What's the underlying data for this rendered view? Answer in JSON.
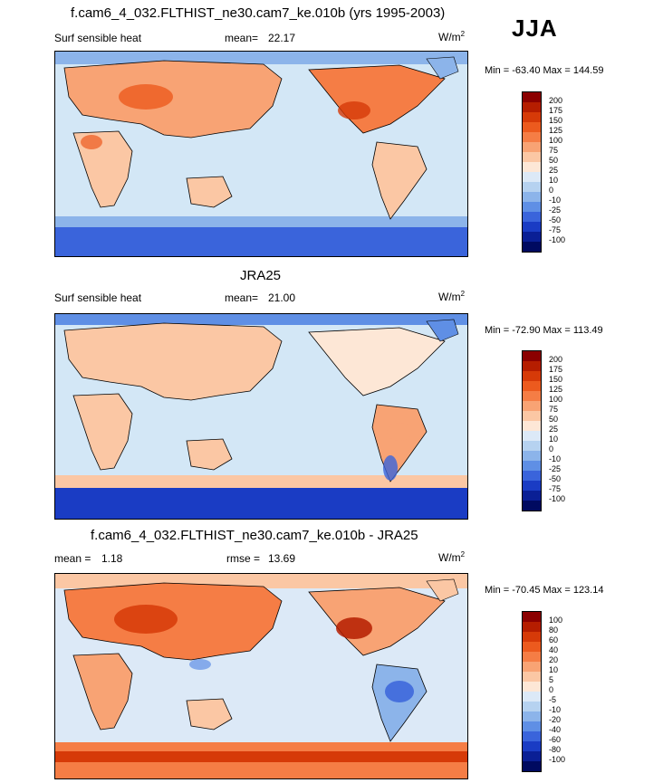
{
  "season": "JJA",
  "panels": [
    {
      "title": "f.cam6_4_032.FLTHIST_ne30.cam7_ke.010b (yrs 1995-2003)",
      "variable": "Surf sensible heat",
      "stat_label": "mean=",
      "stat_value": "22.17",
      "units": "W/m",
      "units_sup": "2",
      "minmax": "Min = -63.40 Max = 144.59",
      "colorbar_labels": [
        "200",
        "175",
        "150",
        "125",
        "100",
        "75",
        "50",
        "25",
        "10",
        "0",
        "-10",
        "-25",
        "-50",
        "-75",
        "-100"
      ]
    },
    {
      "title": "JRA25",
      "variable": "Surf sensible heat",
      "stat_label": "mean=",
      "stat_value": "21.00",
      "units": "W/m",
      "units_sup": "2",
      "minmax": "Min = -72.90 Max = 113.49",
      "colorbar_labels": [
        "200",
        "175",
        "150",
        "125",
        "100",
        "75",
        "50",
        "25",
        "10",
        "0",
        "-10",
        "-25",
        "-50",
        "-75",
        "-100"
      ]
    },
    {
      "title": "f.cam6_4_032.FLTHIST_ne30.cam7_ke.010b - JRA25",
      "variable": "mean =",
      "variable_value": "1.18",
      "stat_label": "rmse =",
      "stat_value": "13.69",
      "units": "W/m",
      "units_sup": "2",
      "minmax": "Min = -70.45 Max = 123.14",
      "colorbar_labels": [
        "100",
        "80",
        "60",
        "40",
        "20",
        "10",
        "5",
        "0",
        "-5",
        "-10",
        "-20",
        "-40",
        "-60",
        "-80",
        "-100"
      ]
    }
  ],
  "colors": {
    "colorbar": [
      "#8b0000",
      "#b51d00",
      "#d63a08",
      "#ec5a1e",
      "#f57d45",
      "#f8a374",
      "#fbc7a4",
      "#fde7d6",
      "#dce9f7",
      "#b6d2f0",
      "#8cb4ea",
      "#5f8fe5",
      "#3a64db",
      "#1a3cc4",
      "#0a1f95",
      "#000a60"
    ],
    "land_warm": "#f7b89a",
    "ocean": "#c9e4f5",
    "hot": "#e86a3a",
    "cold": "#2f5fd8"
  }
}
